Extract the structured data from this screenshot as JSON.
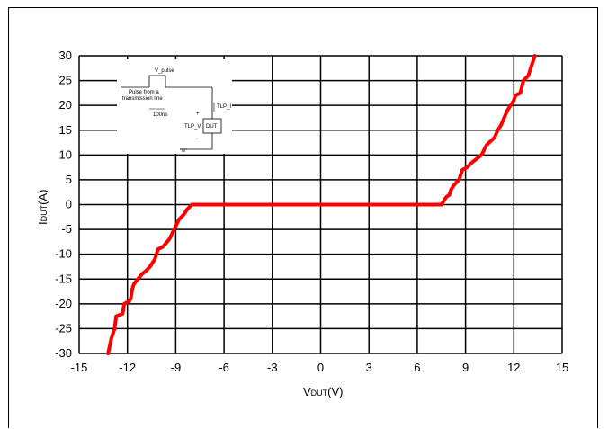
{
  "chart_data": {
    "type": "line",
    "title": "",
    "xlabel": {
      "main": "V",
      "sub": "DUT",
      "unit": "(V)"
    },
    "ylabel": {
      "main": "I",
      "sub": "DUT",
      "unit": "(A)"
    },
    "xlim": [
      -15,
      15
    ],
    "ylim": [
      -30,
      30
    ],
    "x_ticks": [
      -15,
      -12,
      -9,
      -6,
      -3,
      0,
      3,
      6,
      9,
      12,
      15
    ],
    "y_ticks": [
      30,
      25,
      20,
      15,
      10,
      5,
      0,
      -5,
      -10,
      -15,
      -20,
      -25,
      -30
    ],
    "grid": true,
    "series": [
      {
        "color": "#ff0000",
        "x": [
          -13.2,
          -13.0,
          -12.8,
          -12.7,
          -12.3,
          -12.2,
          -11.9,
          -11.8,
          -11.7,
          -11.6,
          -11.1,
          -10.9,
          -10.6,
          -10.3,
          -10.1,
          -9.8,
          -9.4,
          -9.1,
          -8.8,
          -8.5,
          -8.3,
          -8.0,
          -7.8,
          -3.0,
          0.0,
          3.0,
          7.5,
          7.8,
          8.0,
          8.1,
          8.3,
          8.6,
          8.8,
          9.1,
          9.4,
          10.0,
          10.3,
          10.8,
          11.0,
          11.2,
          11.6,
          11.7,
          12.0,
          12.1,
          12.4,
          12.6,
          12.9,
          13.1,
          13.3
        ],
        "y": [
          -30,
          -27,
          -25,
          -22.5,
          -22,
          -20,
          -19.5,
          -19,
          -17,
          -16,
          -14,
          -13.5,
          -12.5,
          -11,
          -9,
          -8.5,
          -7,
          -5,
          -3,
          -2,
          -1,
          0,
          0,
          0,
          0,
          0,
          0,
          1.5,
          2,
          3,
          4,
          5,
          7,
          7.5,
          8.5,
          10,
          12,
          13.5,
          15,
          16,
          19,
          19.5,
          21,
          22,
          22.5,
          25,
          26,
          28,
          30
        ]
      }
    ]
  },
  "inset": {
    "v_pulse": "V_pulse",
    "pulse_line1": "Pulse from a",
    "pulse_line2": "transmission line",
    "duration": "100ns",
    "tlp_i": "TLP_I",
    "tlp_v": "TLP_V",
    "dut": "DUT",
    "plus": "+",
    "minus": "-"
  }
}
